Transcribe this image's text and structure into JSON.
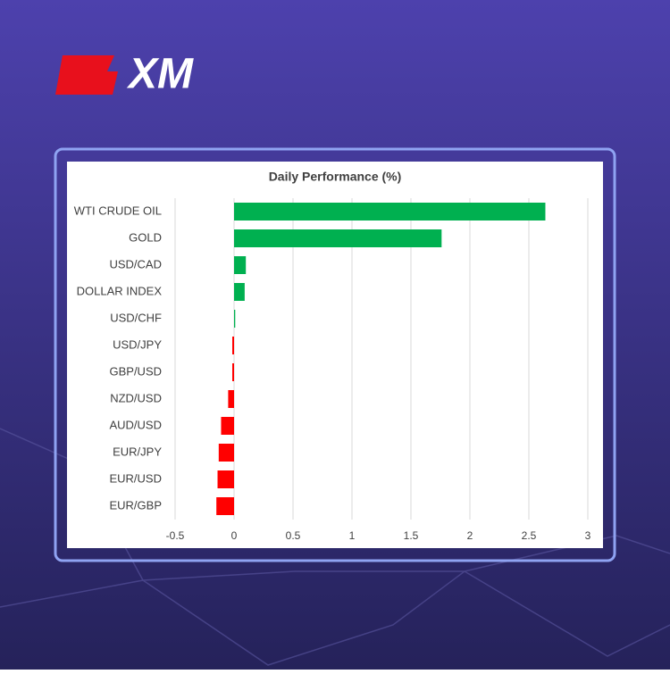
{
  "brand": "XM",
  "chart_data": {
    "type": "bar",
    "orientation": "horizontal",
    "title": "Daily Performance (%)",
    "categories": [
      "WTI CRUDE OIL",
      "GOLD",
      "USD/CAD",
      "DOLLAR INDEX",
      "USD/CHF",
      "USD/JPY",
      "GBP/USD",
      "NZD/USD",
      "AUD/USD",
      "EUR/JPY",
      "EUR/USD",
      "EUR/GBP"
    ],
    "values": [
      2.64,
      1.76,
      0.1,
      0.09,
      0.01,
      -0.015,
      -0.015,
      -0.05,
      -0.11,
      -0.13,
      -0.14,
      -0.15
    ],
    "positive_color": "#00b050",
    "negative_color": "#ff0000",
    "xlim": [
      -0.5,
      3
    ],
    "xticks": [
      -0.5,
      0,
      0.5,
      1,
      1.5,
      2,
      2.5,
      3
    ],
    "grid": true
  }
}
